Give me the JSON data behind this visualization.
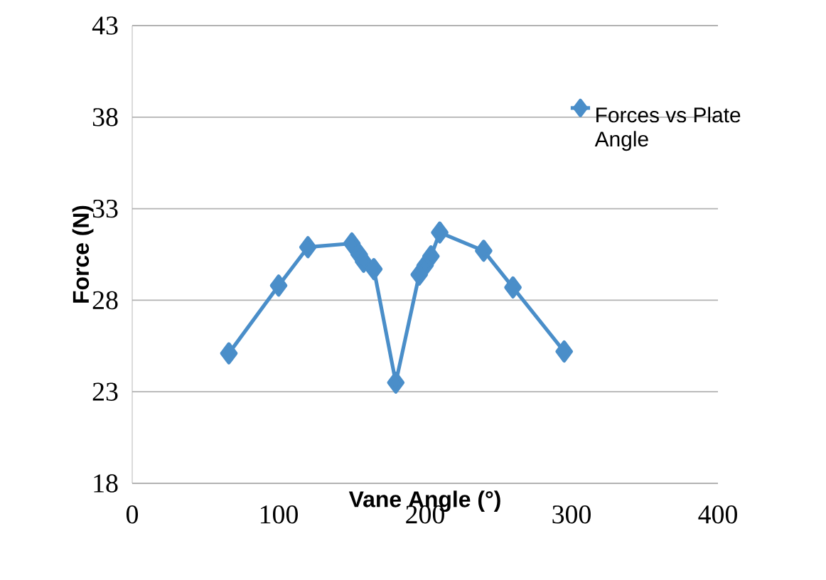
{
  "chart_data": {
    "type": "line",
    "xlabel": "Vane Angle (°)",
    "ylabel": "Force (N)",
    "x": [
      66,
      100,
      120,
      150,
      155,
      158,
      165,
      180,
      196,
      200,
      204,
      210,
      240,
      260,
      295
    ],
    "series": [
      {
        "name": "Forces vs Plate Angle",
        "color": "#4a8ec9",
        "values": [
          25.1,
          28.8,
          30.9,
          31.1,
          30.5,
          30.1,
          29.7,
          23.5,
          29.4,
          29.9,
          30.4,
          31.7,
          30.7,
          28.7,
          25.2
        ]
      }
    ],
    "xlim": [
      0,
      400
    ],
    "ylim": [
      18,
      43
    ],
    "xticks": [
      0,
      100,
      200,
      300,
      400
    ],
    "yticks": [
      18,
      23,
      28,
      33,
      38,
      43
    ],
    "grid": "y",
    "legend": "top right",
    "marker": "diamond",
    "line_style": "solid"
  }
}
